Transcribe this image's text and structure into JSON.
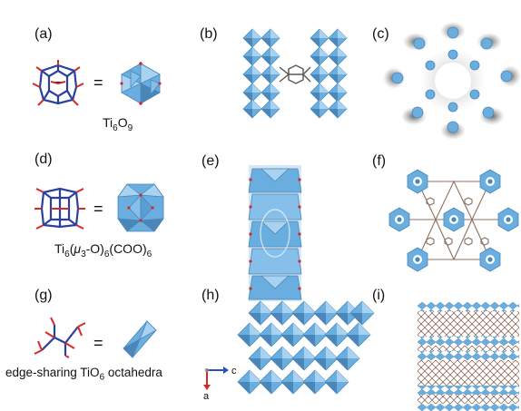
{
  "panels": [
    {
      "label": "(a)"
    },
    {
      "label": "(b)"
    },
    {
      "label": "(c)"
    },
    {
      "label": "(d)"
    },
    {
      "label": "(e)"
    },
    {
      "label": "(f)"
    },
    {
      "label": "(g)"
    },
    {
      "label": "(h)"
    },
    {
      "label": "(i)"
    }
  ],
  "equals_sign": "=",
  "captions": {
    "a": {
      "base": "Ti",
      "s1": "6",
      "mid": "O",
      "s2": "9"
    },
    "d": {
      "p1": "Ti",
      "s1": "6",
      "p2": "(",
      "mu": "μ",
      "s2": "3",
      "p3": "-O)",
      "s3": "6",
      "p4": "(COO)",
      "s4": "6"
    },
    "g": {
      "p1": "edge-sharing TiO",
      "s1": "6",
      "p2": " octahedra"
    }
  },
  "axes_h": {
    "c": "c",
    "a": "a"
  },
  "colors": {
    "octahedron": "#6aaee0",
    "octahedron_dark": "#4a86b8",
    "octahedron_light": "#a9d2f0",
    "oxygen": "#d42a2a",
    "titanium": "#2a3fa0",
    "linker": "#8a7060",
    "axis_c": "#2a4fc0",
    "axis_a": "#d42a2a"
  }
}
